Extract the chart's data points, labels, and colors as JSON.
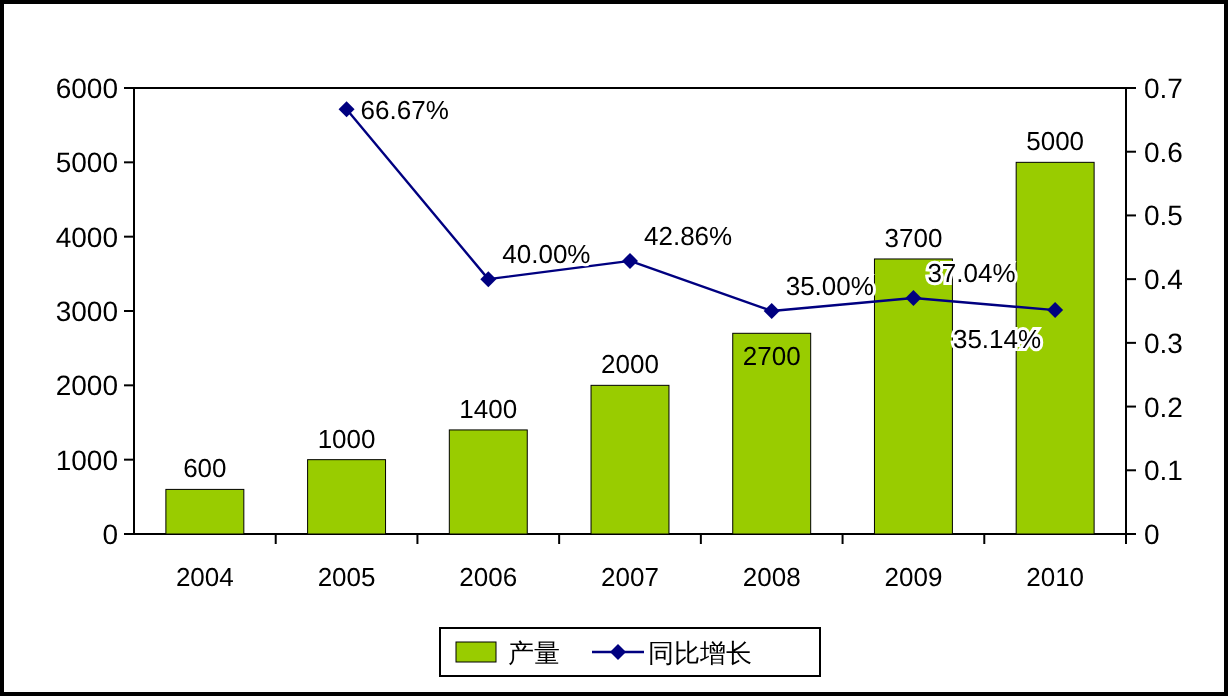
{
  "chart_data": {
    "type": "bar",
    "categories": [
      "2004",
      "2005",
      "2006",
      "2007",
      "2008",
      "2009",
      "2010"
    ],
    "series": [
      {
        "name": "产量",
        "color": "#99cc00",
        "values": [
          600,
          1000,
          1400,
          2000,
          2700,
          3700,
          5000
        ],
        "value_labels": [
          "600",
          "1000",
          "1400",
          "2000",
          "2700",
          "3700",
          "5000"
        ]
      },
      {
        "name": "同比增长",
        "type": "line",
        "axis": "y2",
        "color": "#000080",
        "values": [
          null,
          0.6667,
          0.4,
          0.4286,
          0.35,
          0.3704,
          0.3514
        ],
        "value_labels": [
          null,
          "66.67%",
          "40.00%",
          "42.86%",
          "35.00%",
          "37.04%",
          "35.14%"
        ]
      }
    ],
    "ylim": [
      0,
      6000
    ],
    "yticks": [
      0,
      1000,
      2000,
      3000,
      4000,
      5000,
      6000
    ],
    "y2lim": [
      0,
      0.7
    ],
    "y2ticks": [
      0,
      0.1,
      0.2,
      0.3,
      0.4,
      0.5,
      0.6,
      0.7
    ],
    "legend": "bottom",
    "marker": "diamond",
    "grid": false
  }
}
